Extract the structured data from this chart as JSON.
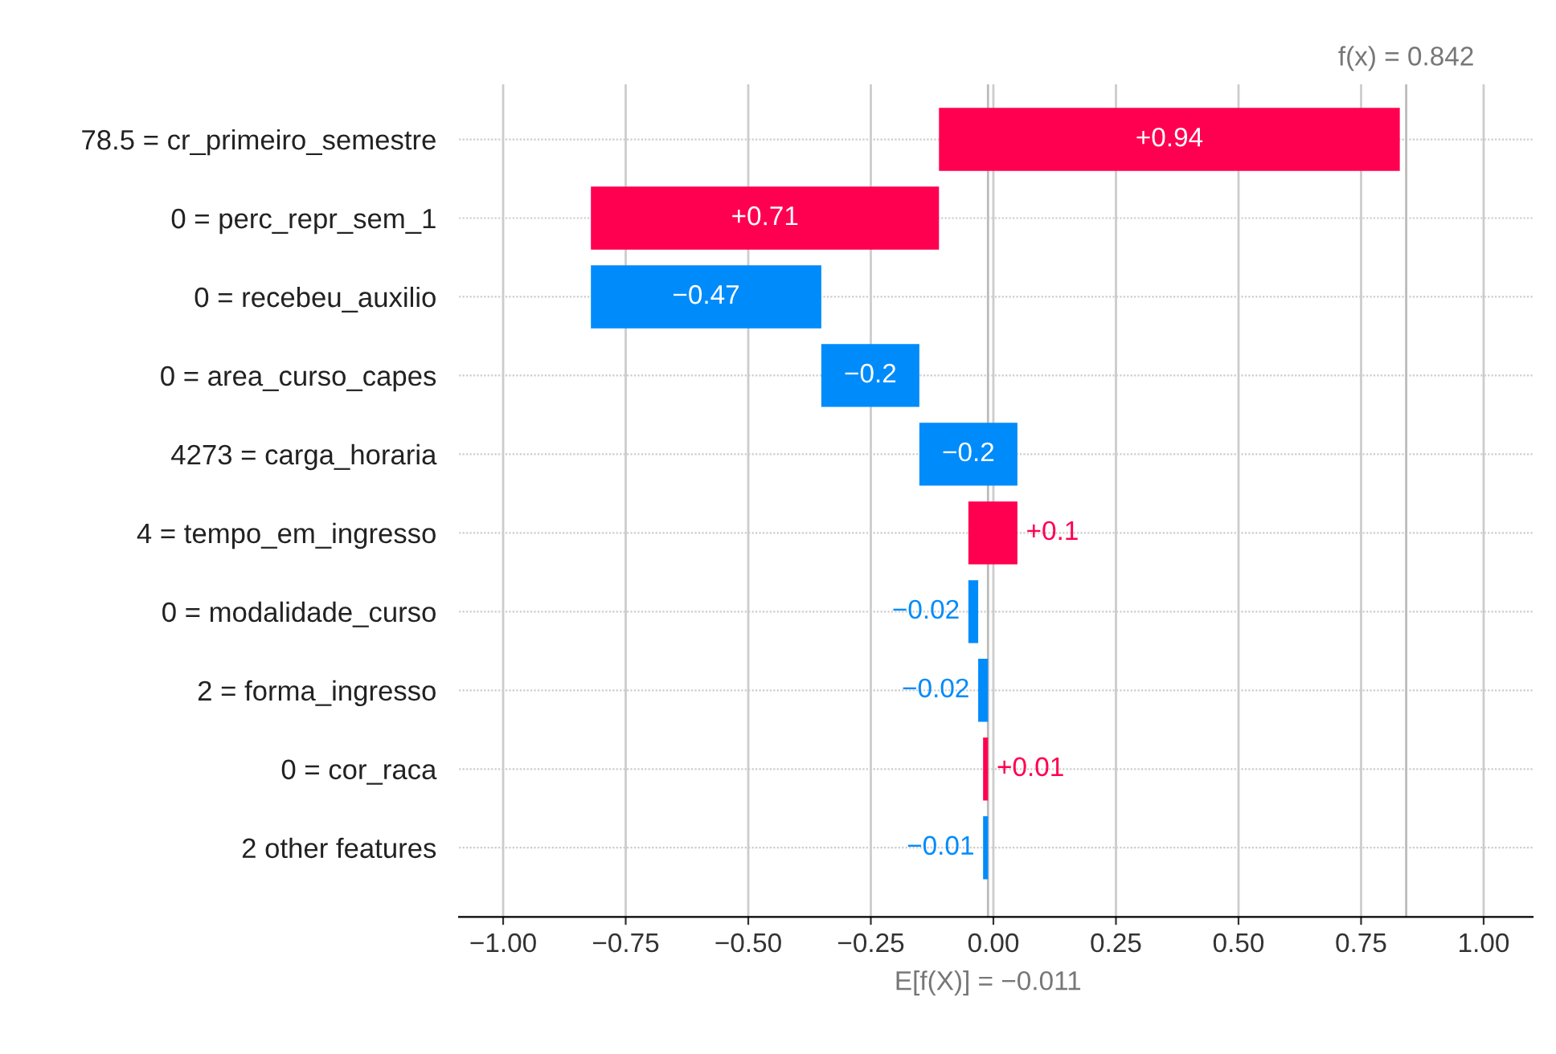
{
  "chart_data": {
    "type": "bar",
    "orientation": "horizontal",
    "categories": [
      "78.5 = cr_primeiro_semestre",
      "0 = perc_repr_sem_1",
      "0 = recebeu_auxilio",
      "0 = area_curso_capes",
      "4273 = carga_horaria",
      "4 = tempo_em_ingresso",
      "0 = modalidade_curso",
      "2 = forma_ingresso",
      "0 = cor_raca",
      "2 other features"
    ],
    "values": [
      0.94,
      0.71,
      -0.47,
      -0.2,
      -0.2,
      0.1,
      -0.02,
      -0.02,
      0.01,
      -0.01
    ],
    "base": [
      -0.111,
      -0.821,
      -0.351,
      -0.151,
      0.049,
      -0.051,
      -0.031,
      -0.011,
      -0.021,
      -0.011
    ],
    "colors": [
      "#ff0051",
      "#ff0051",
      "#008bfb",
      "#008bfb",
      "#008bfb",
      "#ff0051",
      "#008bfb",
      "#008bfb",
      "#ff0051",
      "#008bfb"
    ],
    "value_labels": [
      "+0.94",
      "+0.71",
      "−0.47",
      "−0.2",
      "−0.2",
      "+0.1",
      "−0.02",
      "−0.02",
      "+0.01",
      "−0.01"
    ],
    "xlim": [
      -1.09,
      1.1
    ],
    "xticks": [
      {
        "value": -1.0,
        "label": "−1.00"
      },
      {
        "value": -0.75,
        "label": "−0.75"
      },
      {
        "value": -0.5,
        "label": "−0.50"
      },
      {
        "value": -0.25,
        "label": "−0.25"
      },
      {
        "value": 0.0,
        "label": "0.00"
      },
      {
        "value": 0.25,
        "label": "0.25"
      },
      {
        "value": 0.5,
        "label": "0.50"
      },
      {
        "value": 0.75,
        "label": "0.75"
      },
      {
        "value": 1.0,
        "label": "1.00"
      }
    ],
    "ref_lines": [
      {
        "axis": "x",
        "value": -0.011,
        "label": "E[f(X)] = −0.011",
        "color": "#bbbbbb"
      },
      {
        "axis": "x",
        "value": 0.842,
        "label": "f(x) = 0.842",
        "color": "#bbbbbb"
      }
    ],
    "grid": true
  }
}
